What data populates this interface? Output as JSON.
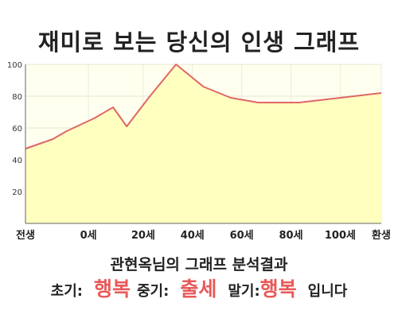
{
  "title": "재미로 보는 당신의 인생 그래프",
  "chart_data": {
    "type": "area",
    "x": [
      0,
      10,
      15,
      25,
      32,
      37,
      45,
      55,
      65,
      75,
      85,
      95,
      100,
      115,
      130
    ],
    "y": [
      47,
      53,
      58,
      66,
      73,
      61,
      79,
      100,
      86,
      79,
      76,
      76,
      76,
      79,
      82
    ],
    "xlim": [
      0,
      130
    ],
    "ylim": [
      0,
      100
    ],
    "y_ticks": [
      20,
      40,
      60,
      80,
      100
    ],
    "x_tick_labels": [
      {
        "x": 0,
        "label": "전생"
      },
      {
        "x": 23,
        "label": "0세"
      },
      {
        "x": 43,
        "label": "20세"
      },
      {
        "x": 61,
        "label": "40세"
      },
      {
        "x": 79,
        "label": "60세"
      },
      {
        "x": 97,
        "label": "80세"
      },
      {
        "x": 115,
        "label": "100세"
      },
      {
        "x": 130,
        "label": "환생"
      }
    ],
    "grid": true,
    "line_color": "#e06666",
    "fill_color": "#ffffc0"
  },
  "result": {
    "title": "관현옥님의 그래프 분석결과",
    "early_label": "초기:",
    "early_value": "행복",
    "mid_label": "중기:",
    "mid_value": "출세",
    "late_label": "말기:",
    "late_value": "행복",
    "suffix": "입니다"
  }
}
